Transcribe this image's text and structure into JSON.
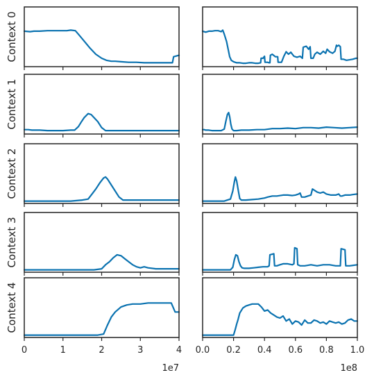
{
  "chart_data": {
    "type": "line",
    "layout": "5 rows x 2 columns of small multiples",
    "line_color": "#0a72b0",
    "grid": false,
    "legend": "none",
    "y_ticks_shown": false,
    "ylim": [
      0,
      1
    ],
    "columns": [
      {
        "xlim": [
          0,
          40000000
        ],
        "x_tick_labels": [
          "0",
          "1",
          "2",
          "3",
          "4"
        ],
        "x_tick_values": [
          0,
          10000000,
          20000000,
          30000000,
          40000000
        ],
        "offset_label": "1e7"
      },
      {
        "xlim": [
          0,
          100000000
        ],
        "x_tick_labels": [
          "0.0",
          "0.2",
          "0.4",
          "0.6",
          "0.8",
          "1.0"
        ],
        "x_tick_values": [
          0,
          20000000,
          40000000,
          60000000,
          80000000,
          100000000
        ],
        "offset_label": "1e8"
      }
    ],
    "rows": [
      {
        "label": "Context 0",
        "series": [
          {
            "x": [
              0,
              1500000,
              2500000,
              4000000,
              6000000,
              8000000,
              10000000,
              11000000,
              12000000,
              13200000,
              14200000,
              15500000,
              17000000,
              18500000,
              20000000,
              21200000,
              22500000,
              23500000,
              25000000,
              27000000,
              29000000,
              31000000,
              33000000,
              35000000,
              37000000,
              38300000,
              38600000,
              40000000
            ],
            "y": [
              0.66,
              0.65,
              0.66,
              0.66,
              0.67,
              0.67,
              0.67,
              0.67,
              0.68,
              0.67,
              0.58,
              0.46,
              0.32,
              0.2,
              0.12,
              0.08,
              0.06,
              0.06,
              0.05,
              0.04,
              0.04,
              0.03,
              0.03,
              0.03,
              0.03,
              0.03,
              0.15,
              0.18
            ]
          },
          {
            "x": [
              0,
              2000000,
              4000000,
              6000000,
              8000000,
              10000000,
              12000000,
              13000000,
              14000000,
              15500000,
              16500000,
              17500000,
              18500000,
              20000000,
              22000000,
              24000000,
              26000000,
              28000000,
              30000000,
              32000000,
              34000000,
              36000000,
              37500000,
              37800000,
              39000000,
              40000000,
              40300000,
              42000000,
              43000000,
              43500000,
              43800000,
              45000000,
              47000000,
              48500000,
              48800000,
              51000000,
              52500000,
              54000000,
              55500000,
              57000000,
              58000000,
              59000000,
              61000000,
              63000000,
              64500000,
              65000000,
              67000000,
              68500000,
              69500000,
              70000000,
              71500000,
              72500000,
              74000000,
              76000000,
              78000000,
              79500000,
              80500000,
              82000000,
              84000000,
              85500000,
              86500000,
              87000000,
              88000000,
              89000000,
              89500000,
              91000000,
              93000000,
              95000000,
              97000000,
              99000000,
              100000000
            ],
            "y": [
              0.66,
              0.64,
              0.66,
              0.66,
              0.67,
              0.67,
              0.65,
              0.68,
              0.6,
              0.45,
              0.3,
              0.15,
              0.08,
              0.05,
              0.03,
              0.03,
              0.02,
              0.02,
              0.03,
              0.03,
              0.02,
              0.02,
              0.03,
              0.12,
              0.12,
              0.16,
              0.04,
              0.04,
              0.03,
              0.03,
              0.18,
              0.2,
              0.15,
              0.15,
              0.04,
              0.04,
              0.16,
              0.25,
              0.2,
              0.24,
              0.2,
              0.16,
              0.14,
              0.16,
              0.12,
              0.34,
              0.36,
              0.3,
              0.35,
              0.12,
              0.12,
              0.2,
              0.24,
              0.2,
              0.26,
              0.22,
              0.3,
              0.25,
              0.22,
              0.26,
              0.38,
              0.36,
              0.38,
              0.35,
              0.1,
              0.1,
              0.08,
              0.09,
              0.1,
              0.12,
              0.12
            ]
          }
        ]
      },
      {
        "label": "Context 1",
        "series": [
          {
            "x": [
              0,
              1000000,
              2000000,
              4000000,
              6000000,
              8000000,
              10000000,
              12000000,
              13000000,
              14000000,
              14800000,
              15500000,
              16500000,
              17300000,
              18000000,
              19000000,
              20000000,
              21000000,
              22000000,
              24000000,
              26000000,
              28000000,
              30000000,
              32000000,
              34000000,
              36000000,
              38000000,
              40000000
            ],
            "y": [
              0.04,
              0.04,
              0.03,
              0.03,
              0.02,
              0.02,
              0.02,
              0.03,
              0.03,
              0.1,
              0.2,
              0.28,
              0.36,
              0.34,
              0.28,
              0.2,
              0.08,
              0.02,
              0.02,
              0.02,
              0.02,
              0.02,
              0.02,
              0.02,
              0.02,
              0.02,
              0.02,
              0.02
            ]
          },
          {
            "x": [
              0,
              1000000,
              2000000,
              4000000,
              6000000,
              8000000,
              10000000,
              12000000,
              14000000,
              15000000,
              16000000,
              16800000,
              17500000,
              18200000,
              19000000,
              20000000,
              22000000,
              25000000,
              30000000,
              35000000,
              40000000,
              45000000,
              50000000,
              55000000,
              60000000,
              65000000,
              70000000,
              75000000,
              80000000,
              85000000,
              90000000,
              95000000,
              100000000
            ],
            "y": [
              0.04,
              0.04,
              0.03,
              0.03,
              0.02,
              0.02,
              0.02,
              0.02,
              0.05,
              0.2,
              0.34,
              0.38,
              0.3,
              0.15,
              0.05,
              0.02,
              0.02,
              0.03,
              0.03,
              0.04,
              0.04,
              0.06,
              0.06,
              0.07,
              0.06,
              0.08,
              0.08,
              0.07,
              0.09,
              0.08,
              0.07,
              0.08,
              0.09
            ]
          }
        ]
      },
      {
        "label": "Context 2",
        "series": [
          {
            "x": [
              0,
              4000000,
              8000000,
              12000000,
              15000000,
              16500000,
              17500000,
              18500000,
              19500000,
              20500000,
              21000000,
              21500000,
              22500000,
              23500000,
              24500000,
              25500000,
              27000000,
              30000000,
              33000000,
              36000000,
              40000000
            ],
            "y": [
              0,
              0,
              0,
              0,
              0.02,
              0.04,
              0.14,
              0.24,
              0.36,
              0.46,
              0.48,
              0.44,
              0.32,
              0.2,
              0.08,
              0.02,
              0.02,
              0.02,
              0.02,
              0.02,
              0.02
            ]
          },
          {
            "x": [
              0,
              5000000,
              10000000,
              14000000,
              16000000,
              18000000,
              19500000,
              20500000,
              21200000,
              22000000,
              23000000,
              24000000,
              25000000,
              28000000,
              32000000,
              36000000,
              40000000,
              42000000,
              45000000,
              48000000,
              52000000,
              55000000,
              58000000,
              60000000,
              62000000,
              63000000,
              64000000,
              66000000,
              68000000,
              70000000,
              71000000,
              72000000,
              74000000,
              76000000,
              78000000,
              80000000,
              83000000,
              86000000,
              88000000,
              89000000,
              90000000,
              92000000,
              95000000,
              97000000,
              100000000
            ],
            "y": [
              0,
              0,
              0,
              0,
              0.02,
              0.04,
              0.2,
              0.38,
              0.48,
              0.4,
              0.22,
              0.05,
              0.02,
              0.02,
              0.03,
              0.04,
              0.06,
              0.08,
              0.1,
              0.1,
              0.12,
              0.12,
              0.11,
              0.12,
              0.14,
              0.16,
              0.08,
              0.08,
              0.1,
              0.12,
              0.24,
              0.22,
              0.18,
              0.16,
              0.18,
              0.14,
              0.12,
              0.12,
              0.14,
              0.1,
              0.1,
              0.12,
              0.12,
              0.13,
              0.14
            ]
          }
        ]
      },
      {
        "label": "Context 3",
        "series": [
          {
            "x": [
              0,
              5000000,
              10000000,
              15000000,
              18000000,
              20000000,
              21000000,
              22000000,
              23000000,
              24000000,
              25000000,
              26000000,
              27000000,
              28000000,
              29000000,
              30000000,
              31000000,
              32000000,
              34000000,
              36000000,
              38000000,
              40000000
            ],
            "y": [
              0,
              0,
              0,
              0,
              0,
              0.02,
              0.1,
              0.16,
              0.24,
              0.3,
              0.28,
              0.22,
              0.16,
              0.1,
              0.06,
              0.04,
              0.06,
              0.04,
              0.02,
              0.02,
              0.02,
              0.02
            ]
          },
          {
            "x": [
              0,
              5000000,
              10000000,
              15000000,
              18000000,
              19500000,
              20500000,
              21500000,
              22500000,
              23500000,
              24500000,
              25500000,
              27000000,
              30000000,
              33000000,
              36000000,
              39000000,
              42000000,
              43000000,
              43500000,
              46000000,
              46500000,
              48000000,
              50000000,
              52000000,
              55000000,
              58000000,
              59000000,
              59500000,
              61000000,
              61500000,
              63000000,
              66000000,
              70000000,
              74000000,
              78000000,
              82000000,
              86000000,
              89000000,
              89500000,
              92000000,
              92500000,
              95000000,
              100000000
            ],
            "y": [
              0,
              0,
              0,
              0,
              0,
              0.05,
              0.2,
              0.3,
              0.28,
              0.16,
              0.08,
              0.04,
              0.03,
              0.03,
              0.04,
              0.05,
              0.06,
              0.06,
              0.08,
              0.3,
              0.32,
              0.08,
              0.08,
              0.1,
              0.12,
              0.12,
              0.1,
              0.12,
              0.44,
              0.42,
              0.1,
              0.08,
              0.08,
              0.1,
              0.08,
              0.1,
              0.1,
              0.08,
              0.08,
              0.42,
              0.4,
              0.08,
              0.08,
              0.1
            ]
          }
        ]
      },
      {
        "label": "Context 4",
        "series": [
          {
            "x": [
              0,
              5000000,
              10000000,
              15000000,
              19000000,
              20500000,
              21500000,
              22500000,
              23500000,
              25000000,
              26500000,
              28000000,
              30000000,
              32000000,
              34000000,
              36000000,
              38000000,
              39000000,
              40000000
            ],
            "y": [
              0,
              0,
              0,
              0,
              0,
              0.02,
              0.2,
              0.36,
              0.46,
              0.56,
              0.6,
              0.62,
              0.62,
              0.64,
              0.64,
              0.64,
              0.64,
              0.46,
              0.46
            ]
          },
          {
            "x": [
              0,
              5000000,
              10000000,
              15000000,
              18000000,
              20000000,
              21000000,
              22000000,
              23000000,
              24000000,
              26000000,
              28000000,
              30000000,
              32000000,
              34000000,
              36000000,
              38000000,
              40000000,
              42000000,
              44000000,
              46000000,
              48000000,
              50000000,
              52000000,
              54000000,
              56000000,
              58000000,
              60000000,
              62000000,
              64000000,
              66000000,
              68000000,
              70000000,
              72000000,
              74000000,
              76000000,
              78000000,
              80000000,
              82000000,
              84000000,
              86000000,
              88000000,
              90000000,
              92000000,
              94000000,
              96000000,
              98000000,
              100000000
            ],
            "y": [
              0,
              0,
              0,
              0,
              0,
              0,
              0.1,
              0.22,
              0.32,
              0.44,
              0.54,
              0.58,
              0.6,
              0.62,
              0.62,
              0.62,
              0.56,
              0.48,
              0.5,
              0.44,
              0.4,
              0.36,
              0.34,
              0.38,
              0.28,
              0.32,
              0.22,
              0.28,
              0.26,
              0.2,
              0.3,
              0.24,
              0.24,
              0.3,
              0.28,
              0.24,
              0.26,
              0.22,
              0.28,
              0.26,
              0.24,
              0.26,
              0.22,
              0.24,
              0.3,
              0.32,
              0.28,
              0.28
            ]
          }
        ]
      }
    ]
  }
}
